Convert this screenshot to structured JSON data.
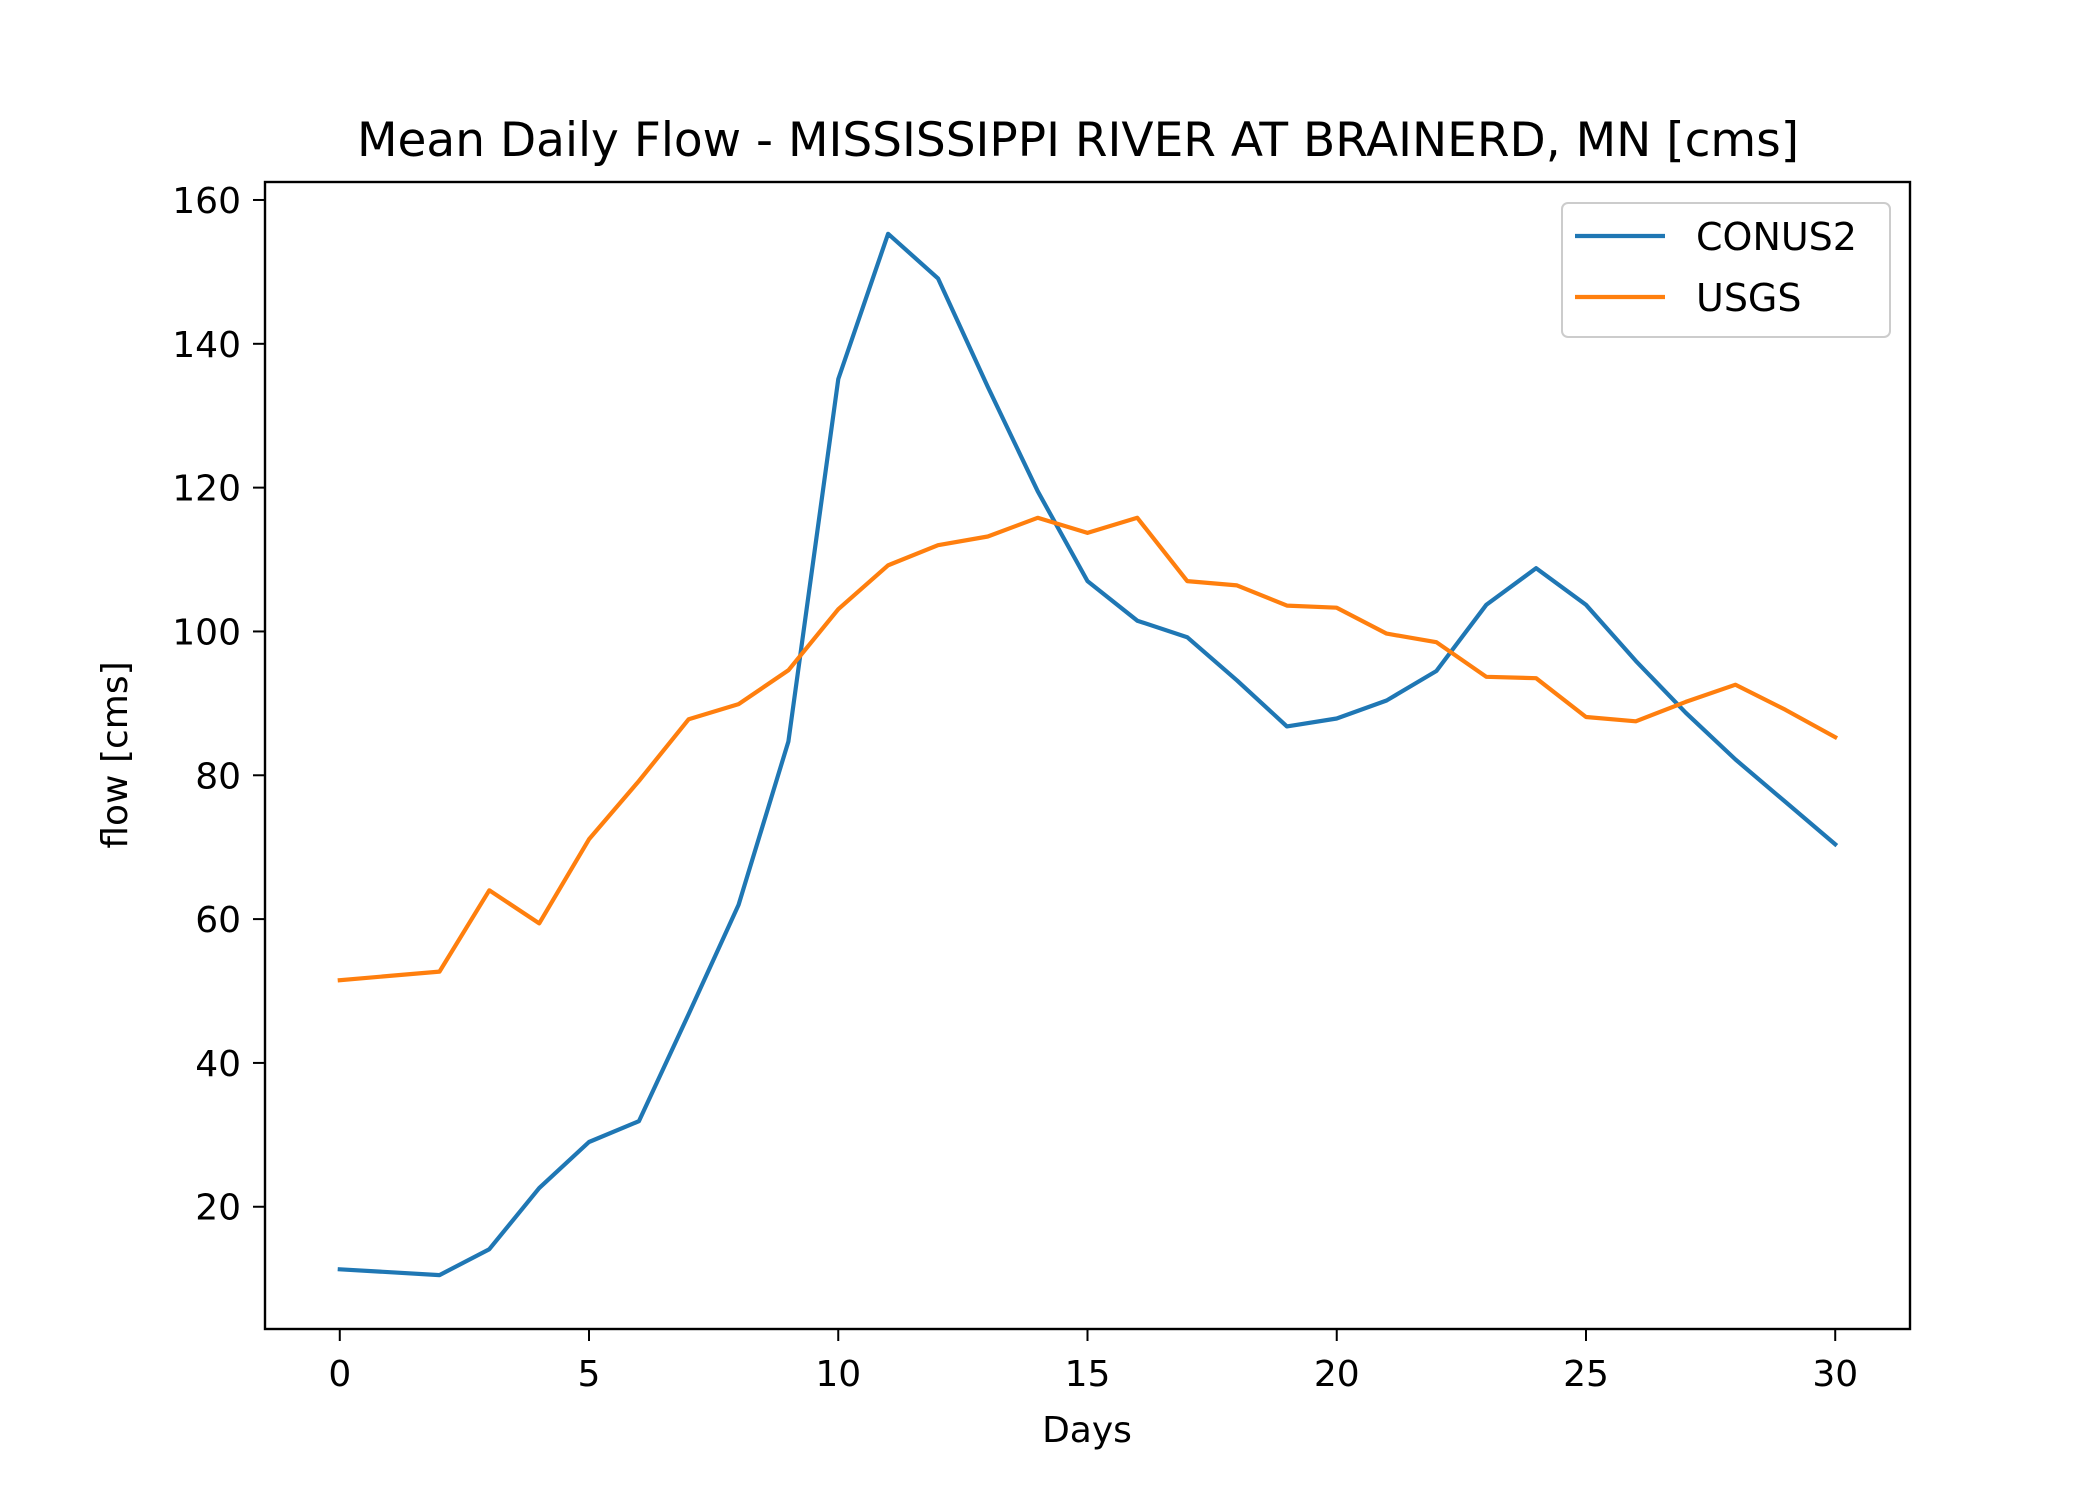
{
  "chart_data": {
    "type": "line",
    "title": "Mean Daily Flow - MISSISSIPPI RIVER AT BRAINERD, MN [cms]",
    "xlabel": "Days",
    "ylabel": "flow [cms]",
    "xlim": [
      -1.5,
      31.5
    ],
    "ylim": [
      3.0,
      162.5
    ],
    "x_ticks": [
      0,
      5,
      10,
      15,
      20,
      25,
      30
    ],
    "y_ticks": [
      20,
      40,
      60,
      80,
      100,
      120,
      140,
      160
    ],
    "grid": false,
    "legend_position": "top-right",
    "x": [
      0,
      1,
      2,
      3,
      4,
      5,
      6,
      7,
      8,
      9,
      10,
      11,
      12,
      13,
      14,
      15,
      16,
      17,
      18,
      19,
      20,
      21,
      22,
      23,
      24,
      25,
      26,
      27,
      28,
      29,
      30
    ],
    "series": [
      {
        "name": "CONUS2",
        "color": "#1f77b4",
        "values": [
          11.3,
          10.9,
          10.5,
          14.1,
          22.6,
          29.0,
          31.9,
          46.8,
          62.0,
          84.7,
          135.1,
          155.3,
          149.1,
          134.0,
          119.5,
          107.0,
          101.5,
          99.2,
          93.2,
          86.8,
          87.9,
          90.4,
          94.5,
          103.7,
          108.8,
          103.7,
          95.9,
          88.7,
          82.2,
          76.3,
          70.4
        ]
      },
      {
        "name": "USGS",
        "color": "#ff7f0e",
        "values": [
          51.5,
          52.1,
          52.7,
          64.0,
          59.4,
          71.1,
          79.2,
          87.8,
          89.9,
          94.6,
          103.1,
          109.2,
          112.0,
          113.2,
          115.8,
          113.7,
          115.8,
          107.0,
          106.4,
          103.6,
          103.3,
          99.7,
          98.5,
          93.7,
          93.5,
          88.1,
          87.5,
          90.2,
          92.6,
          89.1,
          85.3
        ]
      }
    ]
  }
}
